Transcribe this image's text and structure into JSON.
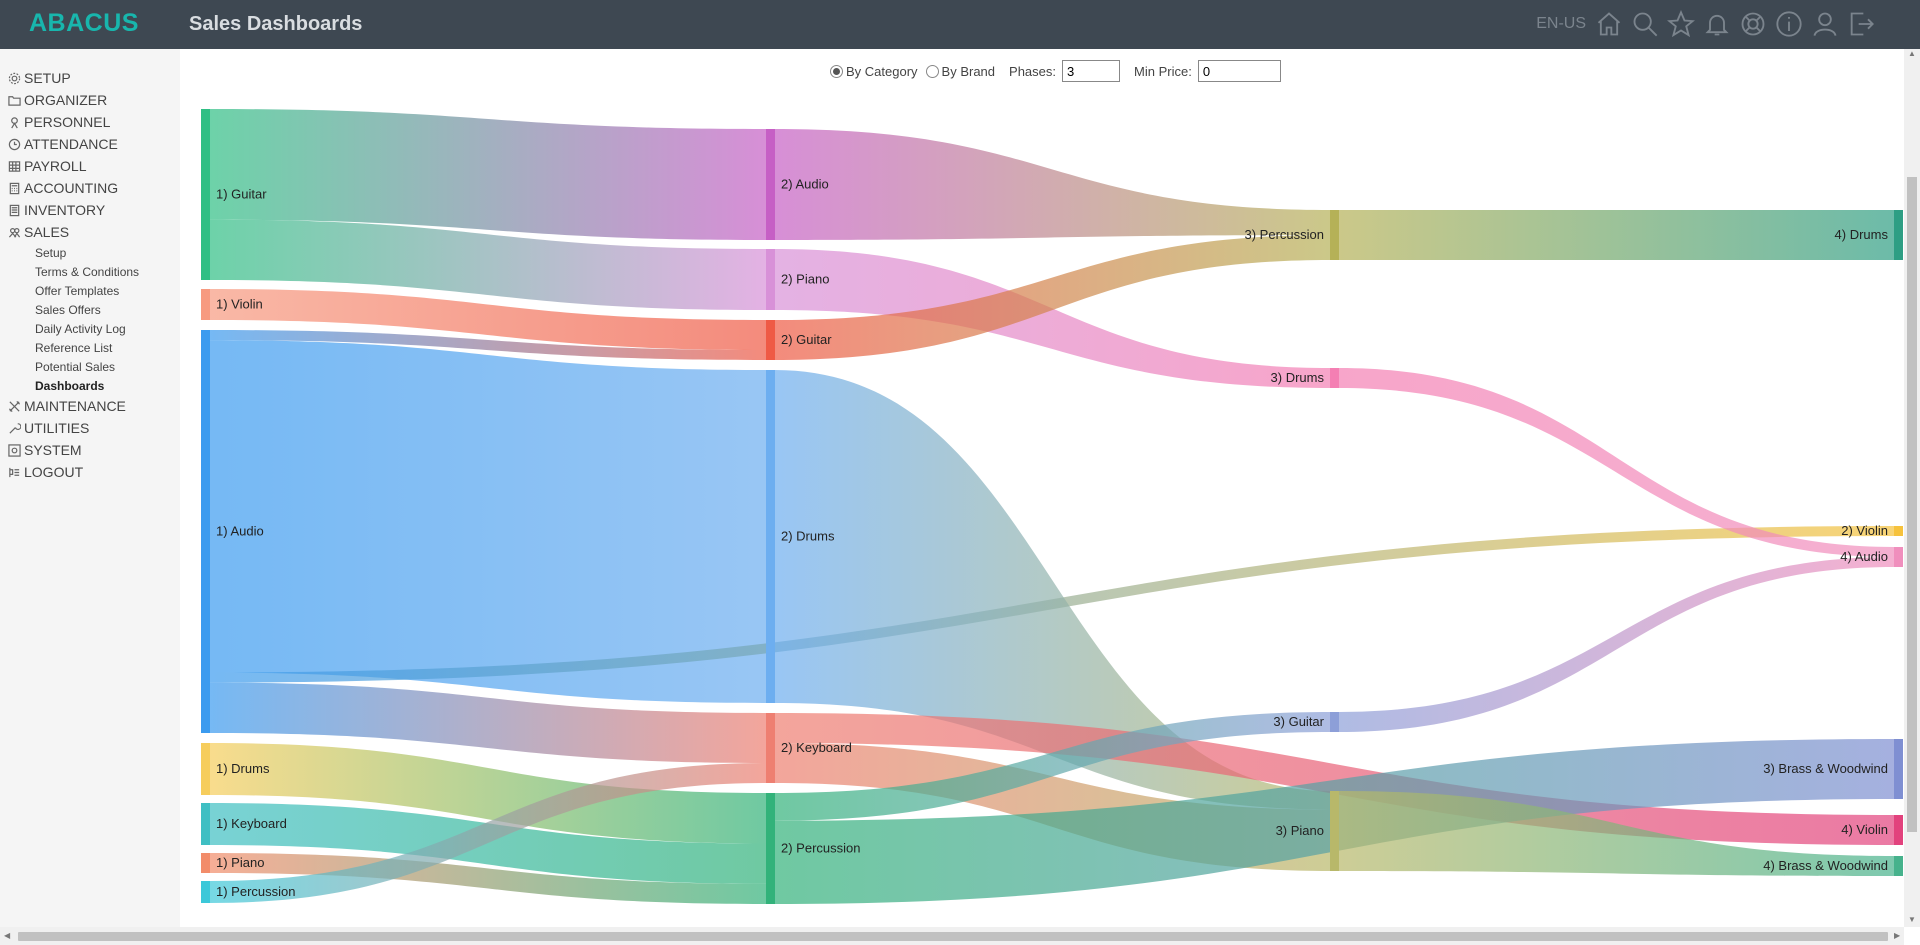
{
  "app": {
    "brand": "ABACUS",
    "page_title": "Sales Dashboards",
    "language": "EN-US"
  },
  "top_icons": [
    "home-icon",
    "search-icon",
    "star-icon",
    "bell-icon",
    "help-icon",
    "info-icon",
    "user-icon",
    "logout-icon"
  ],
  "sidebar": {
    "items": [
      {
        "label": "SETUP",
        "icon": "gear-icon"
      },
      {
        "label": "ORGANIZER",
        "icon": "folder-icon"
      },
      {
        "label": "PERSONNEL",
        "icon": "person-icon"
      },
      {
        "label": "ATTENDANCE",
        "icon": "clock-icon"
      },
      {
        "label": "PAYROLL",
        "icon": "table-icon"
      },
      {
        "label": "ACCOUNTING",
        "icon": "calculator-icon"
      },
      {
        "label": "INVENTORY",
        "icon": "box-icon"
      },
      {
        "label": "SALES",
        "icon": "people-icon"
      }
    ],
    "sales_sub": [
      "Setup",
      "Terms & Conditions",
      "Offer Templates",
      "Sales Offers",
      "Daily Activity Log",
      "Reference List",
      "Potential Sales",
      "Dashboards"
    ],
    "active_sub": "Dashboards",
    "items_after": [
      {
        "label": "MAINTENANCE",
        "icon": "tools-icon"
      },
      {
        "label": "UTILITIES",
        "icon": "wrench-icon"
      },
      {
        "label": "SYSTEM",
        "icon": "system-icon"
      },
      {
        "label": "LOGOUT",
        "icon": "logout-small-icon"
      }
    ]
  },
  "controls": {
    "by_category_label": "By Category",
    "by_brand_label": "By Brand",
    "selected": "By Category",
    "phases_label": "Phases:",
    "phases_value": "3",
    "min_price_label": "Min Price:",
    "min_price_value": "0"
  },
  "chart_data": {
    "type": "sankey",
    "nodes": [
      {
        "id": "p1_guitar",
        "label": "1) Guitar",
        "color": "#2fbf84"
      },
      {
        "id": "p1_violin",
        "label": "1) Violin",
        "color": "#f79a80"
      },
      {
        "id": "p1_audio",
        "label": "1) Audio",
        "color": "#3b9bef"
      },
      {
        "id": "p1_drums",
        "label": "1) Drums",
        "color": "#f6cd5c"
      },
      {
        "id": "p1_keyboard",
        "label": "1) Keyboard",
        "color": "#3fbfc3"
      },
      {
        "id": "p1_piano",
        "label": "1) Piano",
        "color": "#f28c6a"
      },
      {
        "id": "p1_percussion",
        "label": "1) Percussion",
        "color": "#3cc8d9"
      },
      {
        "id": "p2_audio",
        "label": "2) Audio",
        "color": "#c65fc5"
      },
      {
        "id": "p2_piano",
        "label": "2) Piano",
        "color": "#d891d8"
      },
      {
        "id": "p2_guitar",
        "label": "2) Guitar",
        "color": "#ef5a45"
      },
      {
        "id": "p2_drums",
        "label": "2) Drums",
        "color": "#6daef0"
      },
      {
        "id": "p2_keyboard",
        "label": "2) Keyboard",
        "color": "#ee7f71"
      },
      {
        "id": "p2_percussion",
        "label": "2) Percussion",
        "color": "#32b27a"
      },
      {
        "id": "p3_percussion",
        "label": "3) Percussion",
        "color": "#b5b157"
      },
      {
        "id": "p3_drums",
        "label": "3) Drums",
        "color": "#f47fb3"
      },
      {
        "id": "p3_guitar",
        "label": "3) Guitar",
        "color": "#8d9fd8"
      },
      {
        "id": "p3_piano",
        "label": "3) Piano",
        "color": "#b8b86a"
      },
      {
        "id": "p4_drums",
        "label": "4) Drums",
        "color": "#2e9e84"
      },
      {
        "id": "p2_violin",
        "label": "2) Violin",
        "color": "#f6c23c"
      },
      {
        "id": "p4_audio",
        "label": "4) Audio",
        "color": "#f08fbd"
      },
      {
        "id": "p3_brass",
        "label": "3) Brass & Woodwind",
        "color": "#7f8fd2"
      },
      {
        "id": "p4_violin",
        "label": "4) Violin",
        "color": "#e2427d"
      },
      {
        "id": "p4_brass",
        "label": "4) Brass & Woodwind",
        "color": "#46b28c"
      }
    ],
    "links": [
      {
        "source": "p1_guitar",
        "target": "p2_audio",
        "value": 110
      },
      {
        "source": "p1_guitar",
        "target": "p2_piano",
        "value": 60
      },
      {
        "source": "p1_violin",
        "target": "p2_guitar",
        "value": 30
      },
      {
        "source": "p1_audio",
        "target": "p2_guitar",
        "value": 10
      },
      {
        "source": "p1_audio",
        "target": "p2_drums",
        "value": 330
      },
      {
        "source": "p1_audio",
        "target": "p2_violin",
        "value": 10
      },
      {
        "source": "p1_audio",
        "target": "p2_keyboard",
        "value": 50
      },
      {
        "source": "p1_drums",
        "target": "p2_percussion",
        "value": 50
      },
      {
        "source": "p1_keyboard",
        "target": "p2_percussion",
        "value": 40
      },
      {
        "source": "p1_piano",
        "target": "p2_percussion",
        "value": 20
      },
      {
        "source": "p1_percussion",
        "target": "p2_keyboard",
        "value": 20
      },
      {
        "source": "p2_audio",
        "target": "p3_percussion",
        "value": 25
      },
      {
        "source": "p2_piano",
        "target": "p3_drums",
        "value": 20
      },
      {
        "source": "p2_guitar",
        "target": "p3_percussion",
        "value": 25
      },
      {
        "source": "p2_drums",
        "target": "p3_piano",
        "value": 12
      },
      {
        "source": "p2_keyboard",
        "target": "p4_violin",
        "value": 30
      },
      {
        "source": "p2_keyboard",
        "target": "p3_piano",
        "value": 40
      },
      {
        "source": "p2_percussion",
        "target": "p3_guitar",
        "value": 20
      },
      {
        "source": "p2_percussion",
        "target": "p3_brass",
        "value": 60
      },
      {
        "source": "p3_percussion",
        "target": "p4_drums",
        "value": 50
      },
      {
        "source": "p3_drums",
        "target": "p4_audio",
        "value": 10
      },
      {
        "source": "p3_guitar",
        "target": "p4_audio",
        "value": 10
      },
      {
        "source": "p3_piano",
        "target": "p4_brass",
        "value": 20
      }
    ]
  }
}
